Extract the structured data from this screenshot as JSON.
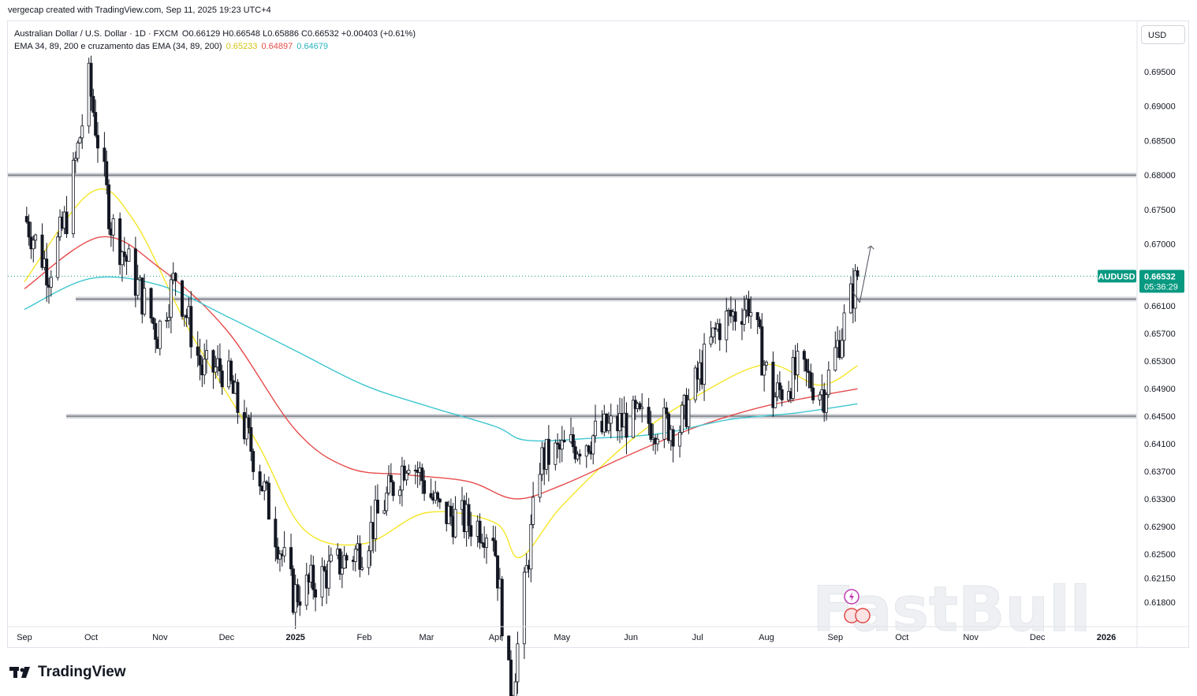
{
  "caption": "vergecap created with TradingView.com, Sep 11, 2025 19:23 UTC+4",
  "legend": {
    "symbol_line": "Australian Dollar / U.S. Dollar · 1D · FXCM",
    "open_label": "O",
    "open": "0.66129",
    "high_label": "H",
    "high": "0.66548",
    "low_label": "L",
    "low": "0.65886",
    "close_label": "C",
    "close": "0.66532",
    "change": "+0.00403 (+0.61%)",
    "indicator_name": "EMA 34, 89, 200 e cruzamento das EMA (34, 89, 200)",
    "ema34": "0.65233",
    "ema89": "0.64897",
    "ema200": "0.64679"
  },
  "currency_button": "USD",
  "watermark_text": "FastBull",
  "footer_brand": "TradingView",
  "colors": {
    "up": "#ffffff",
    "down": "#131722",
    "candle_outline": "#131722",
    "ema34": "#f5e626",
    "ema89": "#e74c4c",
    "ema200": "#3fc6d0",
    "price_tag": "#089981",
    "level": "#b2b5be",
    "ema34_label": "#d4c31a"
  },
  "chart_data": {
    "type": "candlestick",
    "symbol": "AUDUSD",
    "last_price": "0.66532",
    "countdown": "05:36:29",
    "y_ticks": [
      0.695,
      0.69,
      0.685,
      0.68,
      0.675,
      0.67,
      0.661,
      0.657,
      0.653,
      0.649,
      0.645,
      0.641,
      0.637,
      0.633,
      0.629,
      0.625,
      0.6215,
      0.618
    ],
    "y_tick_labels": [
      "0.69500",
      "0.69000",
      "0.68500",
      "0.68000",
      "0.67500",
      "0.67000",
      "0.66100",
      "0.65700",
      "0.65300",
      "0.64900",
      "0.64500",
      "0.64100",
      "0.63700",
      "0.63300",
      "0.62900",
      "0.62500",
      "0.62150",
      "0.61800"
    ],
    "x_labels": [
      "Sep",
      "Oct",
      "Nov",
      "Dec",
      "2025",
      "Feb",
      "Mar",
      "Apr",
      "May",
      "Jun",
      "Jul",
      "Aug",
      "Sep",
      "Oct",
      "Nov",
      "Dec",
      "2026"
    ],
    "x_label_dates": [
      "2024-09-01",
      "2024-10-01",
      "2024-11-01",
      "2024-12-01",
      "2025-01-01",
      "2025-02-01",
      "2025-03-01",
      "2025-04-01",
      "2025-05-01",
      "2025-06-01",
      "2025-07-01",
      "2025-08-01",
      "2025-09-01",
      "2025-10-01",
      "2025-11-01",
      "2025-12-01",
      "2026-01-01"
    ],
    "horizontal_levels": [
      0.68,
      0.662,
      0.645
    ],
    "projection_arrow": {
      "from_date": "2025-09-12",
      "from_price": 0.6615,
      "to_date": "2025-09-17",
      "to_price": 0.6697
    },
    "monthly_path": [
      {
        "date": "2024-09-01",
        "price": 0.674
      },
      {
        "date": "2024-09-12",
        "price": 0.666
      },
      {
        "date": "2024-09-20",
        "price": 0.674
      },
      {
        "date": "2024-09-30",
        "price": 0.6935
      },
      {
        "date": "2024-10-10",
        "price": 0.673
      },
      {
        "date": "2024-10-31",
        "price": 0.657
      },
      {
        "date": "2024-11-08",
        "price": 0.6655
      },
      {
        "date": "2024-11-20",
        "price": 0.6515
      },
      {
        "date": "2024-11-30",
        "price": 0.652
      },
      {
        "date": "2024-12-15",
        "price": 0.6375
      },
      {
        "date": "2024-12-31",
        "price": 0.619
      },
      {
        "date": "2025-01-10",
        "price": 0.621
      },
      {
        "date": "2025-01-31",
        "price": 0.626
      },
      {
        "date": "2025-02-21",
        "price": 0.6395
      },
      {
        "date": "2025-03-07",
        "price": 0.631
      },
      {
        "date": "2025-03-31",
        "price": 0.6285
      },
      {
        "date": "2025-04-08",
        "price": 0.6035
      },
      {
        "date": "2025-04-21",
        "price": 0.6385
      },
      {
        "date": "2025-05-31",
        "price": 0.6445
      },
      {
        "date": "2025-06-23",
        "price": 0.6435
      },
      {
        "date": "2025-07-10",
        "price": 0.658
      },
      {
        "date": "2025-07-24",
        "price": 0.6615
      },
      {
        "date": "2025-08-04",
        "price": 0.6475
      },
      {
        "date": "2025-08-15",
        "price": 0.6515
      },
      {
        "date": "2025-08-27",
        "price": 0.6485
      },
      {
        "date": "2025-09-11",
        "price": 0.6653
      }
    ],
    "ema_series": [
      {
        "name": "ema34",
        "points": [
          {
            "date": "2024-09-01",
            "price": 0.6645
          },
          {
            "date": "2024-10-01",
            "price": 0.6775
          },
          {
            "date": "2024-10-20",
            "price": 0.6735
          },
          {
            "date": "2024-11-15",
            "price": 0.657
          },
          {
            "date": "2024-12-15",
            "price": 0.641
          },
          {
            "date": "2025-01-05",
            "price": 0.6285
          },
          {
            "date": "2025-02-01",
            "price": 0.6265
          },
          {
            "date": "2025-03-01",
            "price": 0.631
          },
          {
            "date": "2025-04-01",
            "price": 0.6295
          },
          {
            "date": "2025-04-12",
            "price": 0.6245
          },
          {
            "date": "2025-05-01",
            "price": 0.632
          },
          {
            "date": "2025-06-01",
            "price": 0.6415
          },
          {
            "date": "2025-07-01",
            "price": 0.648
          },
          {
            "date": "2025-08-01",
            "price": 0.6525
          },
          {
            "date": "2025-08-25",
            "price": 0.6495
          },
          {
            "date": "2025-09-11",
            "price": 0.65233
          }
        ]
      },
      {
        "name": "ema89",
        "points": [
          {
            "date": "2024-09-01",
            "price": 0.6635
          },
          {
            "date": "2024-10-05",
            "price": 0.671
          },
          {
            "date": "2024-11-01",
            "price": 0.6665
          },
          {
            "date": "2024-12-01",
            "price": 0.6575
          },
          {
            "date": "2025-01-01",
            "price": 0.643
          },
          {
            "date": "2025-01-25",
            "price": 0.6375
          },
          {
            "date": "2025-02-20",
            "price": 0.6365
          },
          {
            "date": "2025-03-20",
            "price": 0.6355
          },
          {
            "date": "2025-04-10",
            "price": 0.633
          },
          {
            "date": "2025-05-01",
            "price": 0.635
          },
          {
            "date": "2025-06-01",
            "price": 0.6395
          },
          {
            "date": "2025-07-01",
            "price": 0.6435
          },
          {
            "date": "2025-08-01",
            "price": 0.6465
          },
          {
            "date": "2025-09-11",
            "price": 0.64897
          }
        ]
      },
      {
        "name": "ema200",
        "points": [
          {
            "date": "2024-09-01",
            "price": 0.6605
          },
          {
            "date": "2024-10-01",
            "price": 0.665
          },
          {
            "date": "2024-11-01",
            "price": 0.664
          },
          {
            "date": "2024-12-01",
            "price": 0.6595
          },
          {
            "date": "2025-01-01",
            "price": 0.6545
          },
          {
            "date": "2025-02-01",
            "price": 0.6495
          },
          {
            "date": "2025-03-01",
            "price": 0.6465
          },
          {
            "date": "2025-04-01",
            "price": 0.6435
          },
          {
            "date": "2025-04-15",
            "price": 0.6415
          },
          {
            "date": "2025-05-15",
            "price": 0.6418
          },
          {
            "date": "2025-06-15",
            "price": 0.6425
          },
          {
            "date": "2025-07-15",
            "price": 0.6445
          },
          {
            "date": "2025-08-15",
            "price": 0.6455
          },
          {
            "date": "2025-09-11",
            "price": 0.64679
          }
        ]
      }
    ]
  }
}
